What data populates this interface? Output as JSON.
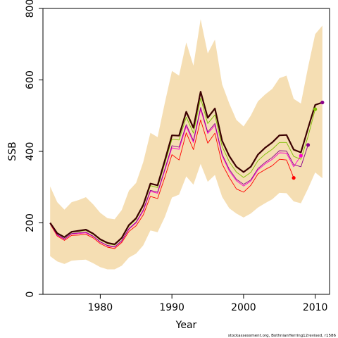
{
  "chart_data": {
    "type": "line",
    "title": "",
    "xlabel": "Year",
    "ylabel": "SSB",
    "xlim": [
      1972,
      2012
    ],
    "ylim": [
      0,
      800
    ],
    "xticks": [
      1980,
      1990,
      2000,
      2010
    ],
    "yticks": [
      0,
      200,
      400,
      600,
      800
    ],
    "grid": false,
    "legend": "none",
    "credit": "stockassessment.org, BothnianHerring12revised, r1586",
    "colors": {
      "band": "#f5deb3",
      "main": "#3b0000",
      "retro_1": "#7cc000",
      "retro_2": "#8b008b",
      "retro_3": "#ff00cc",
      "retro_4": "#ff0000"
    },
    "x": [
      1973,
      1974,
      1975,
      1976,
      1977,
      1978,
      1979,
      1980,
      1981,
      1982,
      1983,
      1984,
      1985,
      1986,
      1987,
      1988,
      1989,
      1990,
      1991,
      1992,
      1993,
      1994,
      1995,
      1996,
      1997,
      1998,
      1999,
      2000,
      2001,
      2002,
      2003,
      2004,
      2005,
      2006,
      2007,
      2008,
      2009,
      2010,
      2011
    ],
    "band_upper": [
      302,
      258,
      237,
      258,
      264,
      272,
      252,
      228,
      213,
      210,
      236,
      290,
      312,
      370,
      452,
      440,
      535,
      625,
      612,
      705,
      640,
      770,
      674,
      713,
      588,
      534,
      488,
      470,
      500,
      540,
      559,
      575,
      605,
      612,
      547,
      534,
      636,
      728,
      752
    ],
    "band_lower": [
      107,
      92,
      85,
      94,
      96,
      97,
      87,
      76,
      70,
      70,
      80,
      103,
      114,
      137,
      179,
      174,
      216,
      271,
      279,
      330,
      307,
      365,
      315,
      334,
      273,
      241,
      226,
      215,
      226,
      243,
      255,
      266,
      284,
      283,
      260,
      255,
      296,
      341,
      325
    ],
    "series": [
      {
        "x": [
          1973,
          1974,
          1975,
          1976,
          1977,
          1978,
          1979,
          1980,
          1981,
          1982,
          1983,
          1984,
          1985,
          1986,
          1987,
          1988,
          1989,
          1990,
          1991,
          1992,
          1993,
          1994,
          1995,
          1996,
          1997,
          1998,
          1999,
          2000,
          2001,
          2002,
          2003,
          2004,
          2005,
          2006,
          2007,
          2008,
          2009,
          2010,
          2011
        ],
        "values": [
          200,
          171,
          160,
          175,
          178,
          181,
          170,
          154,
          144,
          140,
          158,
          194,
          213,
          250,
          310,
          305,
          374,
          445,
          444,
          511,
          466,
          567,
          494,
          520,
          430,
          387,
          357,
          342,
          357,
          391,
          410,
          425,
          445,
          446,
          405,
          397,
          465,
          530,
          537
        ],
        "color_key": "main"
      },
      {
        "x": [
          1973,
          1974,
          1975,
          1976,
          1977,
          1978,
          1979,
          1980,
          1981,
          1982,
          1983,
          1984,
          1985,
          1986,
          1987,
          1988,
          1989,
          1990,
          1991,
          1992,
          1993,
          1994,
          1995,
          1996,
          1997,
          1998,
          1999,
          2000,
          2001,
          2002,
          2003,
          2004,
          2005,
          2006,
          2007,
          2008,
          2009,
          2010
        ],
        "values": [
          199,
          170,
          159,
          174,
          176,
          179,
          168,
          152,
          142,
          138,
          156,
          191,
          210,
          246,
          304,
          299,
          366,
          434,
          432,
          496,
          451,
          549,
          478,
          502,
          414,
          371,
          342,
          327,
          341,
          374,
          392,
          406,
          425,
          425,
          386,
          378,
          442,
          518
        ],
        "end_point": [
          2010,
          518
        ],
        "color_key": "retro_1"
      },
      {
        "x": [
          1973,
          1974,
          1975,
          1976,
          1977,
          1978,
          1979,
          1980,
          1981,
          1982,
          1983,
          1984,
          1985,
          1986,
          1987,
          1988,
          1989,
          1990,
          1991,
          1992,
          1993,
          1994,
          1995,
          1996,
          1997,
          1998,
          1999,
          2000,
          2001,
          2002,
          2003,
          2004,
          2005,
          2006,
          2007,
          2008,
          2009
        ],
        "values": [
          198,
          167,
          155,
          170,
          172,
          174,
          163,
          147,
          137,
          133,
          150,
          184,
          202,
          236,
          291,
          286,
          350,
          416,
          412,
          475,
          430,
          523,
          454,
          478,
          392,
          350,
          322,
          308,
          320,
          352,
          369,
          383,
          402,
          401,
          363,
          357,
          418
        ],
        "end_point": [
          2009,
          418
        ],
        "color_key": "retro_2"
      },
      {
        "x": [
          1973,
          1974,
          1975,
          1976,
          1977,
          1978,
          1979,
          1980,
          1981,
          1982,
          1983,
          1984,
          1985,
          1986,
          1987,
          1988,
          1989,
          1990,
          1991,
          1992,
          1993,
          1994,
          1995,
          1996,
          1997,
          1998,
          1999,
          2000,
          2001,
          2002,
          2003,
          2004,
          2005,
          2006,
          2007,
          2008
        ],
        "values": [
          198,
          166,
          154,
          169,
          170,
          172,
          162,
          146,
          136,
          132,
          149,
          182,
          200,
          233,
          288,
          283,
          346,
          410,
          406,
          470,
          425,
          518,
          450,
          473,
          388,
          345,
          318,
          303,
          317,
          348,
          365,
          378,
          396,
          395,
          357,
          388
        ],
        "end_point": [
          2008,
          388
        ],
        "color_key": "retro_3"
      },
      {
        "x": [
          1973,
          1974,
          1975,
          1976,
          1977,
          1978,
          1979,
          1980,
          1981,
          1982,
          1983,
          1984,
          1985,
          1986,
          1987,
          1988,
          1989,
          1990,
          1991,
          1992,
          1993,
          1994,
          1995,
          1996,
          1997,
          1998,
          1999,
          2000,
          2001,
          2002,
          2003,
          2004,
          2005,
          2006,
          2007
        ],
        "values": [
          197,
          163,
          151,
          165,
          166,
          168,
          158,
          142,
          132,
          128,
          145,
          176,
          192,
          222,
          274,
          268,
          327,
          391,
          376,
          452,
          405,
          488,
          423,
          451,
          365,
          327,
          295,
          286,
          305,
          337,
          349,
          360,
          378,
          376,
          326
        ],
        "end_point": [
          2007,
          326
        ],
        "color_key": "retro_4"
      }
    ]
  }
}
